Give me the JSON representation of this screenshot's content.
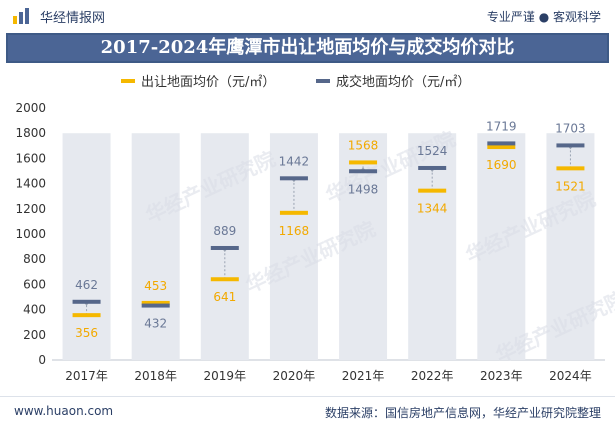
{
  "header": {
    "brand": "华经情报网",
    "slogan": "专业严谨 ● 客观科学",
    "title": "2017-2024年鹰潭市出让地面均价与成交均价对比"
  },
  "footer": {
    "website": "www.huaon.com",
    "source": "数据来源：国信房地产信息网，华经产业研究院整理"
  },
  "watermark": "华经产业研究院",
  "colors": {
    "series_offer": "#f5b800",
    "series_deal": "#56678a",
    "column_bg": "#e6e9ef",
    "title_bg": "#4b6595",
    "label_offer": "#f2a900",
    "label_deal": "#6a7896"
  },
  "chart_data": {
    "type": "bar",
    "title": "2017-2024年鹰潭市出让地面均价与成交均价对比",
    "categories": [
      "2017年",
      "2018年",
      "2019年",
      "2020年",
      "2021年",
      "2022年",
      "2023年",
      "2024年"
    ],
    "series": [
      {
        "name": "出让地面均价（元/㎡）",
        "values": [
          356,
          453,
          641,
          1168,
          1568,
          1344,
          1690,
          1521
        ]
      },
      {
        "name": "成交地面均价（元/㎡）",
        "values": [
          462,
          432,
          889,
          1442,
          1498,
          1524,
          1719,
          1703
        ]
      }
    ],
    "background_band_value": 1800,
    "ylim": [
      0,
      2000
    ],
    "yticks": [
      0,
      200,
      400,
      600,
      800,
      1000,
      1200,
      1400,
      1600,
      1800,
      2000
    ],
    "legend_position": "top-left",
    "grid": false
  }
}
